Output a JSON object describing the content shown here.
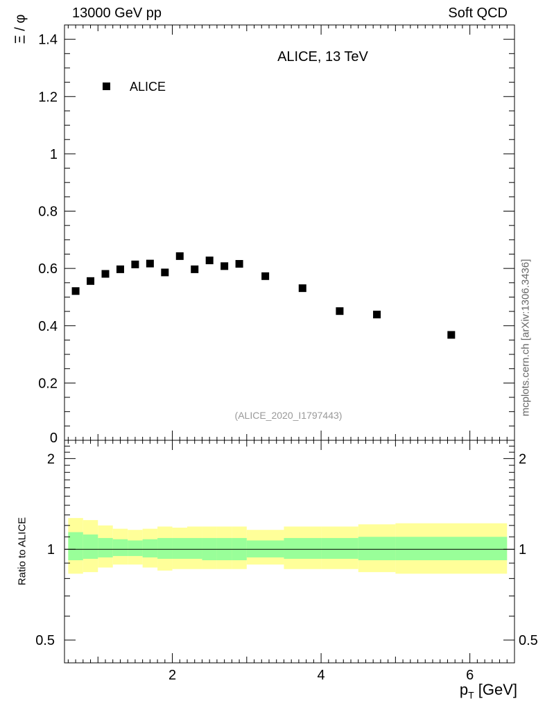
{
  "header": {
    "left": "13000 GeV pp",
    "right": "Soft QCD"
  },
  "watermark": "mcplots.cern.ch [arXiv:1306.3436]",
  "chart_data": [
    {
      "type": "scatter",
      "title": "ALICE, 13 TeV",
      "ylabel": "Ξ / φ",
      "xlabel": "p_T [GeV]",
      "xlim": [
        0.55,
        6.6
      ],
      "ylim": [
        0.0,
        1.45
      ],
      "yticks": [
        0.2,
        0.4,
        0.6,
        0.8,
        1.0,
        1.2,
        1.4
      ],
      "ytick_labels": [
        "0.2",
        "0.4",
        "0.6",
        "0.8",
        "1",
        "1.2",
        "1.4"
      ],
      "yzero_label": "0",
      "legend": [
        {
          "name": "ALICE",
          "marker": "square",
          "color": "#000000"
        }
      ],
      "reference_label": "(ALICE_2020_I1797443)",
      "series": [
        {
          "name": "ALICE",
          "x": [
            0.7,
            0.9,
            1.1,
            1.3,
            1.5,
            1.7,
            1.9,
            2.1,
            2.3,
            2.5,
            2.7,
            2.9,
            3.25,
            3.75,
            4.25,
            4.75,
            5.75
          ],
          "y": [
            0.521,
            0.556,
            0.581,
            0.597,
            0.614,
            0.617,
            0.586,
            0.643,
            0.597,
            0.628,
            0.608,
            0.616,
            0.573,
            0.531,
            0.451,
            0.439,
            0.368
          ]
        }
      ]
    },
    {
      "type": "area",
      "title": "",
      "ylabel": "Ratio to ALICE",
      "xlabel": "p_T [GeV]",
      "xlim": [
        0.55,
        6.6
      ],
      "ylim": [
        0.42,
        2.3
      ],
      "yscale": "log",
      "yticks": [
        0.5,
        1.0,
        2.0
      ],
      "ytick_labels": [
        "0.5",
        "1",
        "2"
      ],
      "xticks": [
        2,
        4,
        6
      ],
      "xtick_labels": [
        "2",
        "4",
        "6"
      ],
      "reference_line": 1.0,
      "bins": [
        {
          "xlo": 0.6,
          "xhi": 0.8,
          "stat_lo": 0.92,
          "stat_hi": 1.14,
          "tot_lo": 0.83,
          "tot_hi": 1.27
        },
        {
          "xlo": 0.8,
          "xhi": 1.0,
          "stat_lo": 0.93,
          "stat_hi": 1.12,
          "tot_lo": 0.84,
          "tot_hi": 1.25
        },
        {
          "xlo": 1.0,
          "xhi": 1.2,
          "stat_lo": 0.94,
          "stat_hi": 1.09,
          "tot_lo": 0.87,
          "tot_hi": 1.2
        },
        {
          "xlo": 1.2,
          "xhi": 1.4,
          "stat_lo": 0.95,
          "stat_hi": 1.08,
          "tot_lo": 0.89,
          "tot_hi": 1.17
        },
        {
          "xlo": 1.4,
          "xhi": 1.6,
          "stat_lo": 0.95,
          "stat_hi": 1.07,
          "tot_lo": 0.89,
          "tot_hi": 1.16
        },
        {
          "xlo": 1.6,
          "xhi": 1.8,
          "stat_lo": 0.94,
          "stat_hi": 1.08,
          "tot_lo": 0.87,
          "tot_hi": 1.17
        },
        {
          "xlo": 1.8,
          "xhi": 2.0,
          "stat_lo": 0.93,
          "stat_hi": 1.09,
          "tot_lo": 0.85,
          "tot_hi": 1.19
        },
        {
          "xlo": 2.0,
          "xhi": 2.2,
          "stat_lo": 0.93,
          "stat_hi": 1.09,
          "tot_lo": 0.86,
          "tot_hi": 1.18
        },
        {
          "xlo": 2.2,
          "xhi": 2.4,
          "stat_lo": 0.93,
          "stat_hi": 1.09,
          "tot_lo": 0.86,
          "tot_hi": 1.19
        },
        {
          "xlo": 2.4,
          "xhi": 2.6,
          "stat_lo": 0.92,
          "stat_hi": 1.09,
          "tot_lo": 0.86,
          "tot_hi": 1.19
        },
        {
          "xlo": 2.6,
          "xhi": 2.8,
          "stat_lo": 0.92,
          "stat_hi": 1.09,
          "tot_lo": 0.86,
          "tot_hi": 1.19
        },
        {
          "xlo": 2.8,
          "xhi": 3.0,
          "stat_lo": 0.92,
          "stat_hi": 1.09,
          "tot_lo": 0.86,
          "tot_hi": 1.19
        },
        {
          "xlo": 3.0,
          "xhi": 3.5,
          "stat_lo": 0.94,
          "stat_hi": 1.07,
          "tot_lo": 0.89,
          "tot_hi": 1.16
        },
        {
          "xlo": 3.5,
          "xhi": 4.0,
          "stat_lo": 0.93,
          "stat_hi": 1.09,
          "tot_lo": 0.86,
          "tot_hi": 1.19
        },
        {
          "xlo": 4.0,
          "xhi": 4.5,
          "stat_lo": 0.93,
          "stat_hi": 1.09,
          "tot_lo": 0.86,
          "tot_hi": 1.19
        },
        {
          "xlo": 4.5,
          "xhi": 5.0,
          "stat_lo": 0.92,
          "stat_hi": 1.1,
          "tot_lo": 0.84,
          "tot_hi": 1.21
        },
        {
          "xlo": 5.0,
          "xhi": 6.5,
          "stat_lo": 0.92,
          "stat_hi": 1.1,
          "tot_lo": 0.83,
          "tot_hi": 1.22
        }
      ]
    }
  ],
  "colors": {
    "marker": "#000000",
    "stat_band": "#99ff99",
    "total_band": "#ffff99",
    "reference_text": "#999999",
    "watermark": "#666666"
  }
}
